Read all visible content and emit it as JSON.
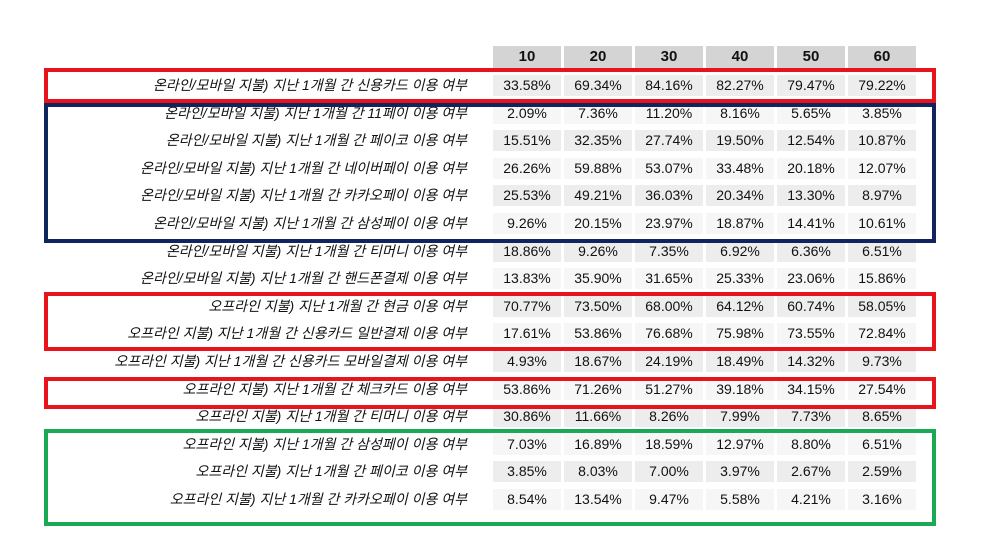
{
  "columns": [
    "10",
    "20",
    "30",
    "40",
    "50",
    "60"
  ],
  "rows": [
    {
      "label": "온라인/모바일 지불) 지난 1개월 간 신용카드 이용 여부",
      "values": [
        "33.58%",
        "69.34%",
        "84.16%",
        "82.27%",
        "79.47%",
        "79.22%"
      ]
    },
    {
      "label": "온라인/모바일 지불) 지난 1개월 간 11페이 이용 여부",
      "values": [
        "2.09%",
        "7.36%",
        "11.20%",
        "8.16%",
        "5.65%",
        "3.85%"
      ]
    },
    {
      "label": "온라인/모바일 지불) 지난 1개월 간 페이코 이용 여부",
      "values": [
        "15.51%",
        "32.35%",
        "27.74%",
        "19.50%",
        "12.54%",
        "10.87%"
      ]
    },
    {
      "label": "온라인/모바일 지불) 지난 1개월 간 네이버페이 이용 여부",
      "values": [
        "26.26%",
        "59.88%",
        "53.07%",
        "33.48%",
        "20.18%",
        "12.07%"
      ]
    },
    {
      "label": "온라인/모바일 지불) 지난 1개월 간 카카오페이 이용 여부",
      "values": [
        "25.53%",
        "49.21%",
        "36.03%",
        "20.34%",
        "13.30%",
        "8.97%"
      ]
    },
    {
      "label": "온라인/모바일 지불) 지난 1개월 간 삼성페이 이용 여부",
      "values": [
        "9.26%",
        "20.15%",
        "23.97%",
        "18.87%",
        "14.41%",
        "10.61%"
      ]
    },
    {
      "label": "온라인/모바일 지불) 지난 1개월 간 티머니 이용 여부",
      "values": [
        "18.86%",
        "9.26%",
        "7.35%",
        "6.92%",
        "6.36%",
        "6.51%"
      ]
    },
    {
      "label": "온라인/모바일 지불) 지난 1개월 간 핸드폰결제 이용 여부",
      "values": [
        "13.83%",
        "35.90%",
        "31.65%",
        "25.33%",
        "23.06%",
        "15.86%"
      ]
    },
    {
      "label": "오프라인 지불) 지난 1개월 간 현금 이용 여부",
      "values": [
        "70.77%",
        "73.50%",
        "68.00%",
        "64.12%",
        "60.74%",
        "58.05%"
      ]
    },
    {
      "label": "오프라인 지불) 지난 1개월 간 신용카드 일반결제 이용 여부",
      "values": [
        "17.61%",
        "53.86%",
        "76.68%",
        "75.98%",
        "73.55%",
        "72.84%"
      ]
    },
    {
      "label": "오프라인 지불) 지난 1개월 간 신용카드 모바일결제 이용 여부",
      "values": [
        "4.93%",
        "18.67%",
        "24.19%",
        "18.49%",
        "14.32%",
        "9.73%"
      ]
    },
    {
      "label": "오프라인 지불) 지난 1개월 간 체크카드 이용 여부",
      "values": [
        "53.86%",
        "71.26%",
        "51.27%",
        "39.18%",
        "34.15%",
        "27.54%"
      ]
    },
    {
      "label": "오프라인 지불) 지난 1개월 간 티머니 이용 여부",
      "values": [
        "30.86%",
        "11.66%",
        "8.26%",
        "7.99%",
        "7.73%",
        "8.65%"
      ]
    },
    {
      "label": "오프라인 지불) 지난 1개월 간 삼성페이 이용 여부",
      "values": [
        "7.03%",
        "16.89%",
        "18.59%",
        "12.97%",
        "8.80%",
        "6.51%"
      ]
    },
    {
      "label": "오프라인 지불) 지난 1개월 간 페이코 이용 여부",
      "values": [
        "3.85%",
        "8.03%",
        "7.00%",
        "3.97%",
        "2.67%",
        "2.59%"
      ]
    },
    {
      "label": "오프라인 지불) 지난 1개월 간 카카오페이 이용 여부",
      "values": [
        "8.54%",
        "13.54%",
        "9.47%",
        "5.58%",
        "4.21%",
        "3.16%"
      ]
    }
  ],
  "highlight_colors": {
    "red": "#e8141c",
    "navy": "#10245e",
    "green": "#1aaa55"
  }
}
